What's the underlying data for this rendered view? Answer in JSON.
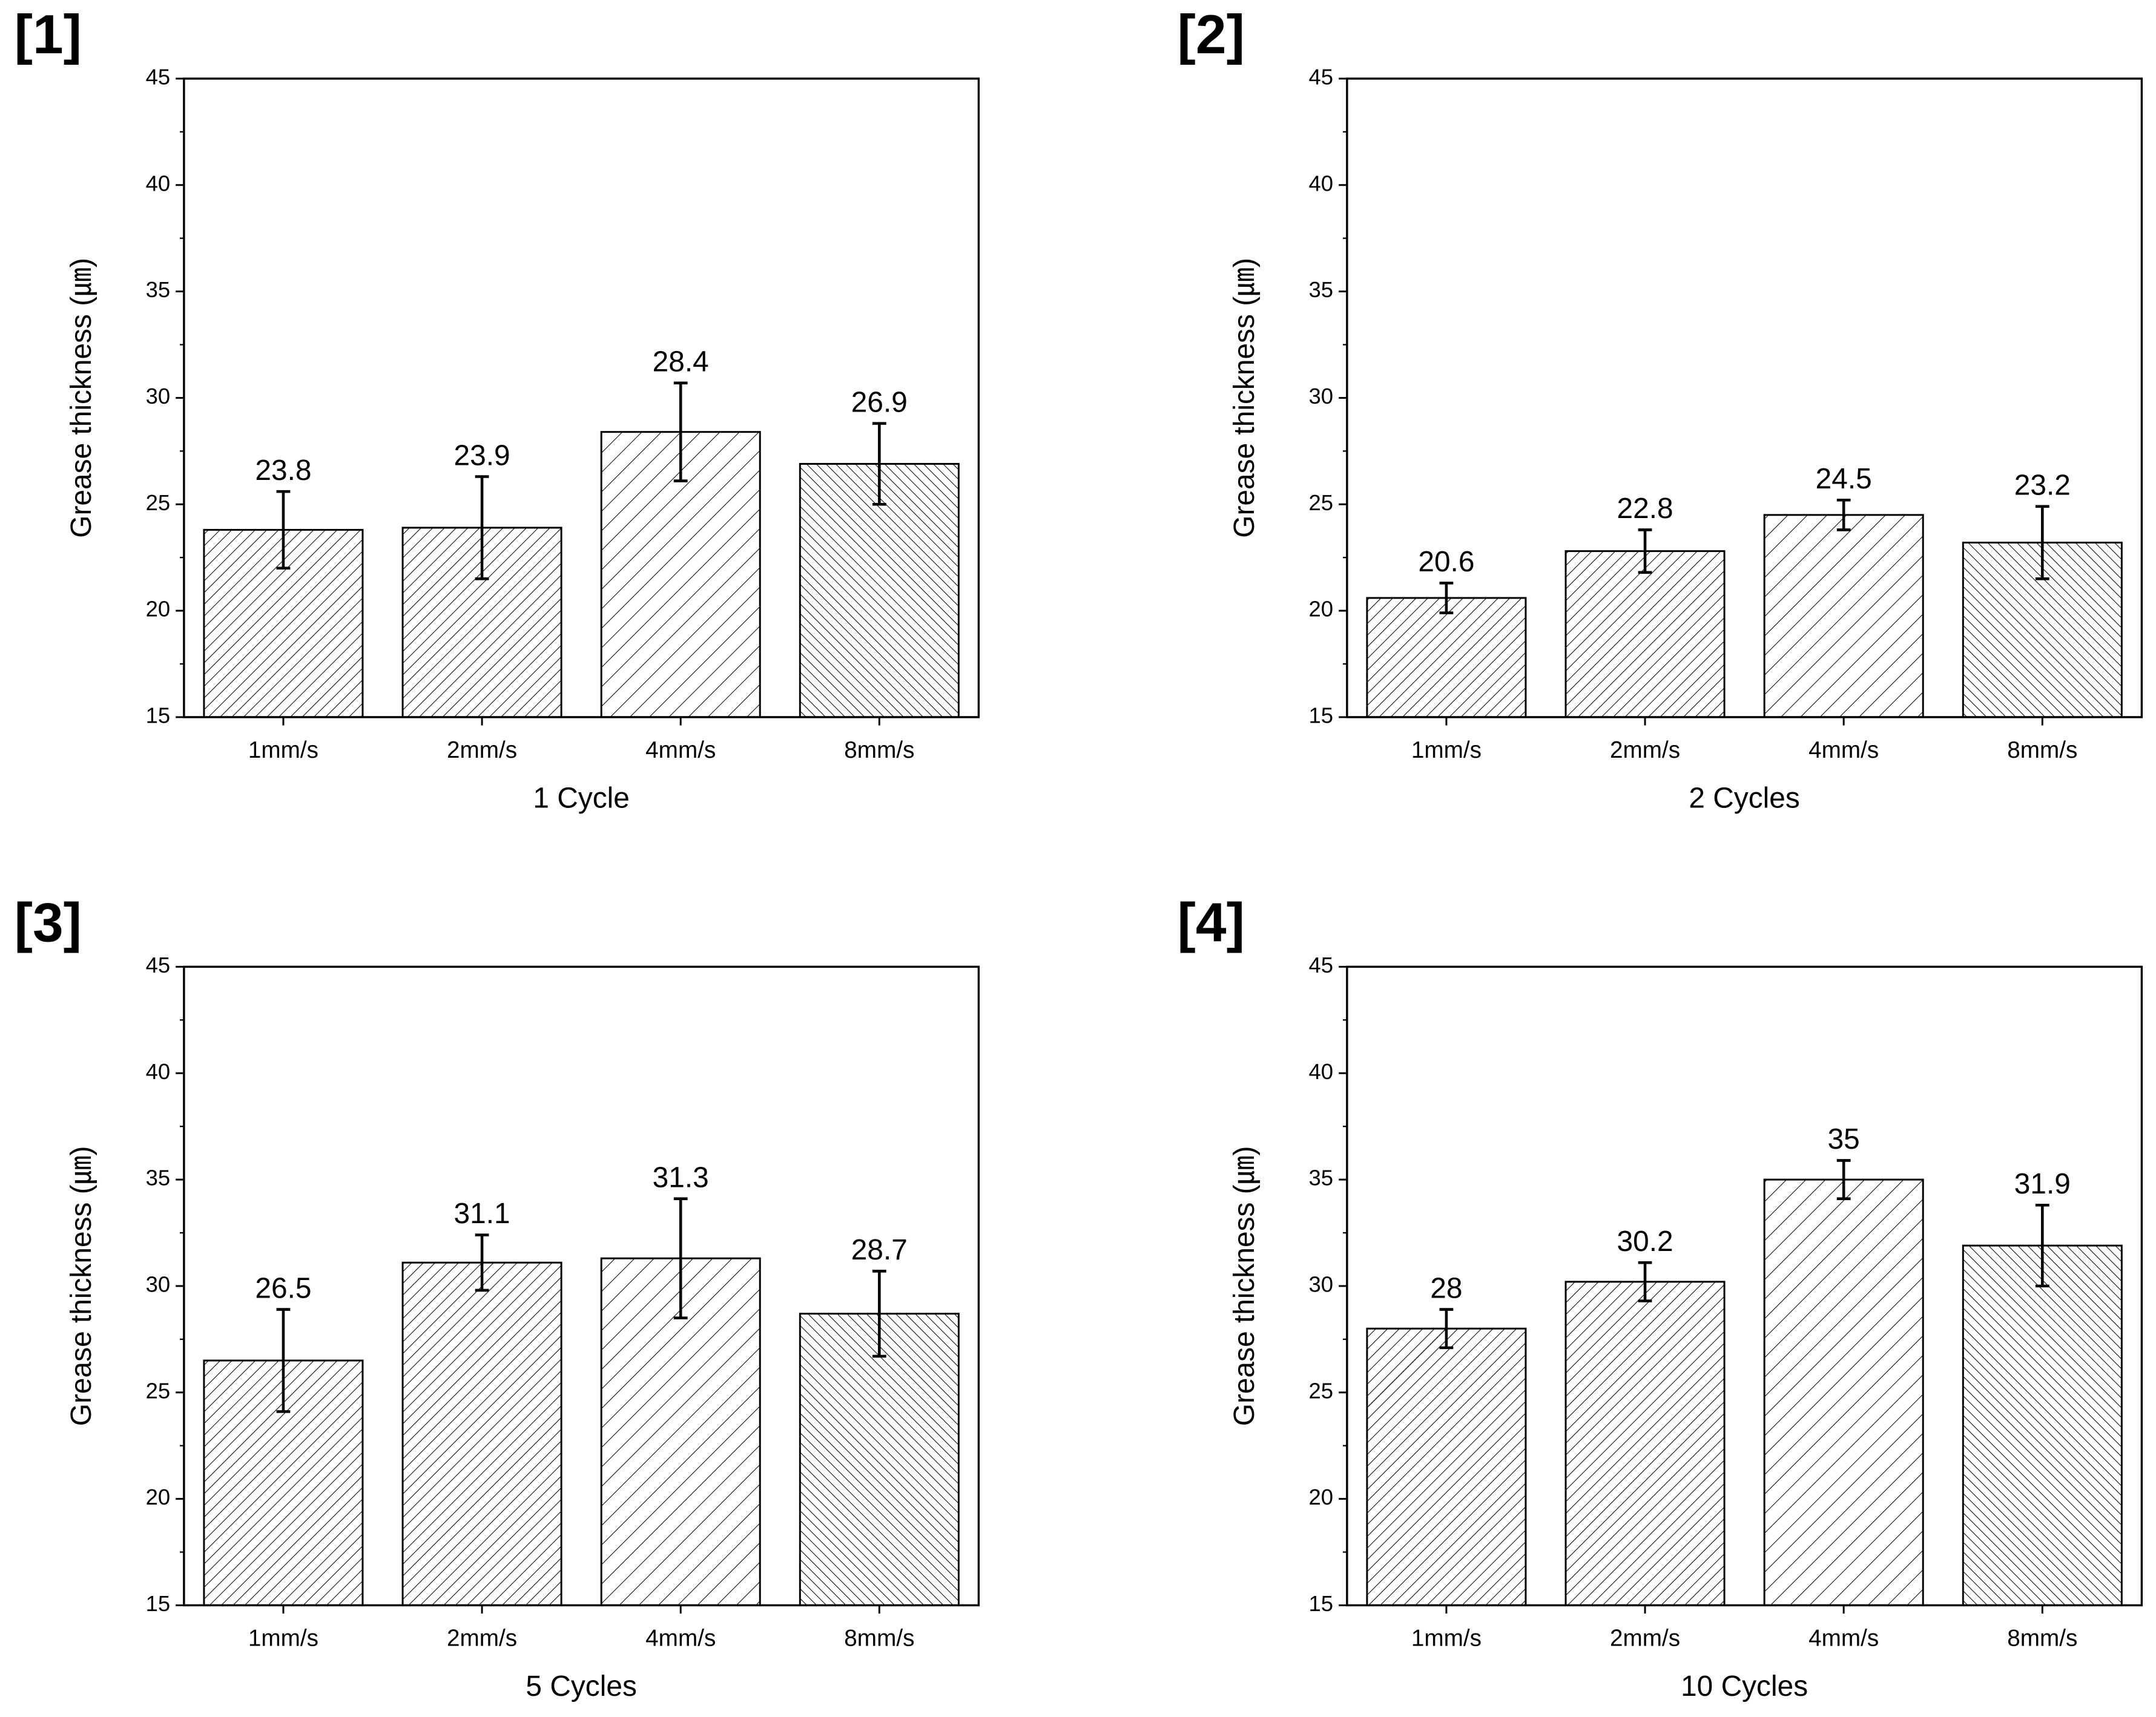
{
  "chart_data": [
    {
      "type": "bar",
      "panel_label": "[1]",
      "xlabel": "1 Cycle",
      "ylabel": "Grease thickness (㎛)",
      "categories": [
        "1mm/s",
        "2mm/s",
        "4mm/s",
        "8mm/s"
      ],
      "values": [
        23.8,
        23.9,
        28.4,
        26.9
      ],
      "errors": [
        1.8,
        2.4,
        2.3,
        1.9
      ],
      "ylim": [
        15,
        45
      ],
      "yticks": [
        15,
        20,
        25,
        30,
        35,
        40,
        45
      ],
      "color": "#000000"
    },
    {
      "type": "bar",
      "panel_label": "[2]",
      "xlabel": "2 Cycles",
      "ylabel": "Grease thickness (㎛)",
      "categories": [
        "1mm/s",
        "2mm/s",
        "4mm/s",
        "8mm/s"
      ],
      "values": [
        20.6,
        22.8,
        24.5,
        23.2
      ],
      "errors": [
        0.7,
        1.0,
        0.7,
        1.7
      ],
      "ylim": [
        15,
        45
      ],
      "yticks": [
        15,
        20,
        25,
        30,
        35,
        40,
        45
      ],
      "color": "#000000"
    },
    {
      "type": "bar",
      "panel_label": "[3]",
      "xlabel": "5 Cycles",
      "ylabel": "Grease thickness (㎛)",
      "categories": [
        "1mm/s",
        "2mm/s",
        "4mm/s",
        "8mm/s"
      ],
      "values": [
        26.5,
        31.1,
        31.3,
        28.7
      ],
      "errors": [
        2.4,
        1.3,
        2.8,
        2.0
      ],
      "ylim": [
        15,
        45
      ],
      "yticks": [
        15,
        20,
        25,
        30,
        35,
        40,
        45
      ],
      "color": "#000000"
    },
    {
      "type": "bar",
      "panel_label": "[4]",
      "xlabel": "10 Cycles",
      "ylabel": "Grease thickness (㎛)",
      "categories": [
        "1mm/s",
        "2mm/s",
        "4mm/s",
        "8mm/s"
      ],
      "values": [
        28,
        30.2,
        35,
        31.9
      ],
      "errors": [
        0.9,
        0.9,
        0.9,
        1.9
      ],
      "ylim": [
        15,
        45
      ],
      "yticks": [
        15,
        20,
        25,
        30,
        35,
        40,
        45
      ],
      "color": "#000000"
    }
  ]
}
